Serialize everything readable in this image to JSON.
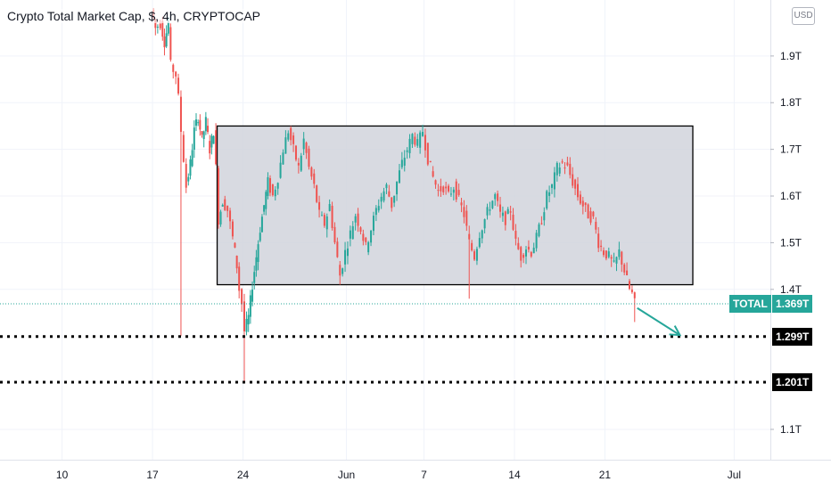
{
  "chart_data": {
    "type": "candlestick",
    "title": "Crypto Total Market Cap, $, 4h, CRYPTOCAP",
    "currency": "USD",
    "ylim": [
      1.035,
      2.02
    ],
    "y_ticks": [
      "1.1T",
      "1.4T",
      "1.5T",
      "1.6T",
      "1.7T",
      "1.8T",
      "1.9T"
    ],
    "y_tick_values": [
      1.1,
      1.4,
      1.5,
      1.6,
      1.7,
      1.8,
      1.9
    ],
    "x_ticks": [
      "10",
      "17",
      "24",
      "Jun",
      "7",
      "14",
      "21",
      "Jul"
    ],
    "x_tick_days": [
      10,
      17,
      24,
      32,
      38,
      45,
      52,
      62
    ],
    "xlim_days": [
      5.2,
      64.8
    ],
    "day_note": "day numbers counted from May 1 (Jun = day 32)",
    "series": [
      {
        "name": "TOTAL",
        "last_value": "1.369T",
        "path": [
          [
            17.0,
            2.0
          ],
          [
            17.3,
            1.96
          ],
          [
            17.7,
            1.97
          ],
          [
            18.0,
            1.93
          ],
          [
            18.3,
            1.97
          ],
          [
            18.5,
            1.88
          ],
          [
            18.9,
            1.86
          ],
          [
            19.1,
            1.81
          ],
          [
            19.3,
            1.74
          ],
          [
            19.5,
            1.68
          ],
          [
            19.7,
            1.62
          ],
          [
            20.0,
            1.67
          ],
          [
            20.3,
            1.74
          ],
          [
            20.6,
            1.77
          ],
          [
            20.9,
            1.72
          ],
          [
            21.2,
            1.76
          ],
          [
            21.5,
            1.7
          ],
          [
            21.8,
            1.74
          ],
          [
            22.0,
            1.66
          ],
          [
            22.2,
            1.55
          ],
          [
            22.5,
            1.59
          ],
          [
            22.9,
            1.57
          ],
          [
            23.3,
            1.51
          ],
          [
            23.6,
            1.45
          ],
          [
            23.8,
            1.4
          ],
          [
            24.0,
            1.37
          ],
          [
            24.2,
            1.31
          ],
          [
            24.5,
            1.34
          ],
          [
            24.8,
            1.41
          ],
          [
            25.1,
            1.47
          ],
          [
            25.4,
            1.53
          ],
          [
            25.7,
            1.58
          ],
          [
            26.0,
            1.63
          ],
          [
            26.4,
            1.6
          ],
          [
            26.8,
            1.64
          ],
          [
            27.2,
            1.7
          ],
          [
            27.6,
            1.74
          ],
          [
            28.0,
            1.7
          ],
          [
            28.4,
            1.66
          ],
          [
            28.8,
            1.72
          ],
          [
            29.2,
            1.66
          ],
          [
            29.6,
            1.62
          ],
          [
            30.0,
            1.56
          ],
          [
            30.4,
            1.54
          ],
          [
            30.8,
            1.58
          ],
          [
            31.2,
            1.5
          ],
          [
            31.6,
            1.43
          ],
          [
            32.0,
            1.48
          ],
          [
            32.4,
            1.52
          ],
          [
            32.8,
            1.56
          ],
          [
            33.2,
            1.53
          ],
          [
            33.6,
            1.49
          ],
          [
            34.0,
            1.53
          ],
          [
            34.4,
            1.57
          ],
          [
            34.8,
            1.6
          ],
          [
            35.2,
            1.62
          ],
          [
            35.6,
            1.58
          ],
          [
            36.0,
            1.63
          ],
          [
            36.4,
            1.67
          ],
          [
            36.8,
            1.7
          ],
          [
            37.2,
            1.73
          ],
          [
            37.6,
            1.71
          ],
          [
            38.0,
            1.74
          ],
          [
            38.4,
            1.68
          ],
          [
            38.8,
            1.64
          ],
          [
            39.2,
            1.61
          ],
          [
            39.6,
            1.62
          ],
          [
            40.0,
            1.6
          ],
          [
            40.4,
            1.62
          ],
          [
            40.8,
            1.59
          ],
          [
            41.2,
            1.56
          ],
          [
            41.6,
            1.5
          ],
          [
            42.0,
            1.47
          ],
          [
            42.4,
            1.52
          ],
          [
            42.8,
            1.55
          ],
          [
            43.2,
            1.58
          ],
          [
            43.6,
            1.6
          ],
          [
            44.0,
            1.56
          ],
          [
            44.4,
            1.55
          ],
          [
            44.8,
            1.57
          ],
          [
            45.2,
            1.5
          ],
          [
            45.6,
            1.47
          ],
          [
            46.0,
            1.49
          ],
          [
            46.4,
            1.48
          ],
          [
            46.8,
            1.51
          ],
          [
            47.2,
            1.55
          ],
          [
            47.6,
            1.6
          ],
          [
            48.0,
            1.62
          ],
          [
            48.4,
            1.66
          ],
          [
            48.8,
            1.67
          ],
          [
            49.2,
            1.66
          ],
          [
            49.6,
            1.63
          ],
          [
            50.0,
            1.6
          ],
          [
            50.4,
            1.58
          ],
          [
            50.8,
            1.56
          ],
          [
            51.2,
            1.55
          ],
          [
            51.6,
            1.5
          ],
          [
            52.0,
            1.48
          ],
          [
            52.4,
            1.47
          ],
          [
            52.8,
            1.45
          ],
          [
            53.2,
            1.48
          ],
          [
            53.6,
            1.44
          ],
          [
            54.0,
            1.4
          ],
          [
            54.2,
            1.39
          ],
          [
            54.4,
            1.37
          ]
        ]
      }
    ],
    "range_box": {
      "x_start_day": 22.0,
      "x_end_day": 58.8,
      "y_low": 1.41,
      "y_high": 1.75
    },
    "horizontal_levels": [
      {
        "value": 1.299,
        "label": "1.299T"
      },
      {
        "value": 1.201,
        "label": "1.201T"
      }
    ],
    "last_price_line": {
      "value": 1.369,
      "label_name": "TOTAL",
      "label_value": "1.369T"
    },
    "annotation_arrow": {
      "from": [
        54.5,
        1.36
      ],
      "to": [
        57.8,
        1.302
      ]
    },
    "colors": {
      "up": "#26a69a",
      "down": "#ef5350",
      "range_fill": "#d1d4dc",
      "level_line": "#000000",
      "price_label_bg": "#26a69a",
      "level_label_bg": "#000000"
    }
  }
}
